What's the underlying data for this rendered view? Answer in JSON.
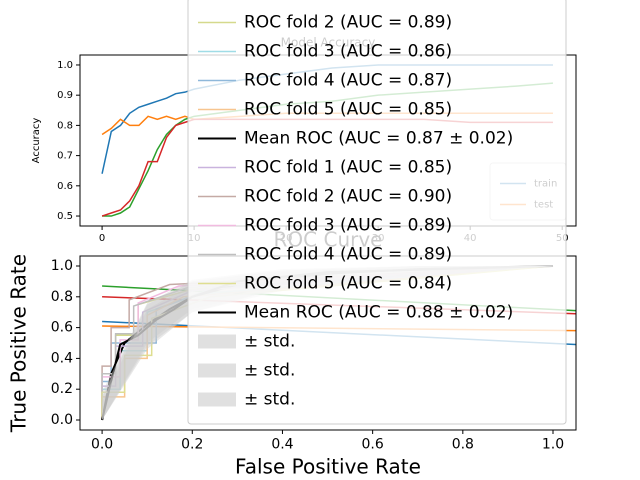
{
  "chart_data": [
    {
      "type": "line",
      "title": "Model Accuracy",
      "ylabel": "Accuracy",
      "x": [
        0,
        1,
        2,
        3,
        4,
        5,
        6,
        7,
        8,
        9,
        10,
        15,
        20,
        25,
        30,
        35,
        40,
        45,
        49
      ],
      "series": [
        {
          "name": "train",
          "color": "#1f77b4",
          "values": [
            0.64,
            0.78,
            0.8,
            0.84,
            0.86,
            0.87,
            0.88,
            0.89,
            0.905,
            0.91,
            0.92,
            0.95,
            0.97,
            0.99,
            1.0,
            1.0,
            1.0,
            1.0,
            1.0
          ]
        },
        {
          "name": "test",
          "color": "#ff7f0e",
          "values": [
            0.77,
            0.79,
            0.82,
            0.8,
            0.8,
            0.83,
            0.82,
            0.83,
            0.82,
            0.83,
            0.82,
            0.83,
            0.84,
            0.84,
            0.84,
            0.84,
            0.84,
            0.84,
            0.84
          ]
        },
        {
          "color": "#2ca02c",
          "values": [
            0.5,
            0.5,
            0.51,
            0.53,
            0.59,
            0.65,
            0.72,
            0.77,
            0.8,
            0.82,
            0.83,
            0.85,
            0.87,
            0.88,
            0.9,
            0.91,
            0.92,
            0.93,
            0.94
          ]
        },
        {
          "color": "#d62728",
          "values": [
            0.5,
            0.51,
            0.52,
            0.55,
            0.6,
            0.68,
            0.68,
            0.76,
            0.8,
            0.81,
            0.82,
            0.82,
            0.82,
            0.82,
            0.82,
            0.82,
            0.81,
            0.81,
            0.81
          ]
        }
      ],
      "xlim": [
        -2.4,
        51.5
      ],
      "ylim": [
        0.467,
        1.033
      ],
      "xticks": [
        0,
        10,
        20,
        30,
        40,
        50
      ],
      "yticks": [
        0.5,
        0.6,
        0.7,
        0.8,
        0.9,
        {
          "value": 1,
          "label": "1.0"
        }
      ],
      "legend": "lower right"
    },
    {
      "type": "line",
      "title": "ROC Curve",
      "xlabel": "False Positive Rate",
      "ylabel": "True Positive Rate",
      "series": [
        {
          "color": "#2ca02c",
          "x": [
            0,
            1.05
          ],
          "values": [
            0.87,
            0.71
          ]
        },
        {
          "color": "#d62728",
          "x": [
            0,
            1.05
          ],
          "values": [
            0.8,
            0.69
          ]
        },
        {
          "color": "#1f77b4",
          "x": [
            0,
            1.05
          ],
          "values": [
            0.64,
            0.49
          ]
        },
        {
          "color": "#ff7f0e",
          "x": [
            0,
            1.05
          ],
          "values": [
            0.61,
            0.58
          ]
        },
        {
          "name": "ROC fold 2 (AUC = 0.89)",
          "color": "#d5d98c",
          "x": [
            0,
            0,
            0.03,
            0.03,
            0.08,
            0.08,
            0.2,
            1.0
          ],
          "values": [
            0,
            0.3,
            0.3,
            0.55,
            0.55,
            0.75,
            0.85,
            1.0
          ]
        },
        {
          "name": "ROC fold 3 (AUC = 0.86)",
          "color": "#9fdce6",
          "x": [
            0,
            0,
            0.04,
            0.04,
            0.1,
            0.1,
            0.22,
            1.0
          ],
          "values": [
            0,
            0.2,
            0.2,
            0.45,
            0.45,
            0.7,
            0.82,
            1.0
          ]
        },
        {
          "name": "ROC fold 4 (AUC = 0.87)",
          "color": "#8fb8da",
          "x": [
            0,
            0,
            0.02,
            0.02,
            0.12,
            0.12,
            0.25,
            1.0
          ],
          "values": [
            0,
            0.25,
            0.25,
            0.5,
            0.5,
            0.72,
            0.86,
            1.0
          ]
        },
        {
          "name": "ROC fold 5 (AUC = 0.85)",
          "color": "#f7c58f",
          "x": [
            0,
            0,
            0.05,
            0.05,
            0.1,
            0.1,
            0.18,
            1.0
          ],
          "values": [
            0,
            0.15,
            0.15,
            0.4,
            0.4,
            0.68,
            0.8,
            1.0
          ]
        },
        {
          "name": "Mean ROC (AUC = 0.87 ± 0.02)",
          "color": "#000000",
          "x": [
            0,
            0.02,
            0.05,
            0.1,
            0.15,
            0.2,
            0.3,
            0.5,
            0.7,
            1.0
          ],
          "values": [
            0,
            0.3,
            0.5,
            0.62,
            0.72,
            0.8,
            0.88,
            0.95,
            0.98,
            1.0
          ]
        },
        {
          "name": "ROC fold 1 (AUC = 0.85)",
          "color": "#c9b3de",
          "x": [
            0,
            0,
            0.03,
            0.03,
            0.09,
            0.09,
            0.2,
            1.0
          ],
          "values": [
            0,
            0.22,
            0.22,
            0.48,
            0.48,
            0.7,
            0.84,
            1.0
          ]
        },
        {
          "name": "ROC fold 2 (AUC = 0.90)",
          "color": "#c5aaa5",
          "x": [
            0,
            0,
            0.02,
            0.02,
            0.06,
            0.06,
            0.15,
            1.0
          ],
          "values": [
            0,
            0.35,
            0.35,
            0.6,
            0.6,
            0.78,
            0.88,
            1.0
          ]
        },
        {
          "name": "ROC fold 3 (AUC = 0.89)",
          "color": "#f1bbe0",
          "x": [
            0,
            0,
            0.04,
            0.04,
            0.08,
            0.08,
            0.17,
            1.0
          ],
          "values": [
            0,
            0.28,
            0.28,
            0.52,
            0.52,
            0.76,
            0.87,
            1.0
          ]
        },
        {
          "name": "ROC fold 4 (AUC = 0.89)",
          "color": "#bfbfbf",
          "x": [
            0,
            0,
            0.03,
            0.03,
            0.07,
            0.07,
            0.19,
            1.0
          ],
          "values": [
            0,
            0.3,
            0.3,
            0.56,
            0.56,
            0.74,
            0.86,
            1.0
          ]
        },
        {
          "name": "ROC fold 5 (AUC = 0.84)",
          "color": "#dede90",
          "x": [
            0,
            0,
            0.05,
            0.05,
            0.11,
            0.11,
            0.24,
            1.0
          ],
          "values": [
            0,
            0.18,
            0.18,
            0.42,
            0.42,
            0.66,
            0.8,
            1.0
          ]
        },
        {
          "name": "Mean ROC (AUC = 0.88 ± 0.02)",
          "color": "#000000",
          "x": [
            0,
            0.02,
            0.04,
            0.08,
            0.12,
            0.16,
            0.2,
            0.3,
            0.5,
            1.0
          ],
          "values": [
            0,
            0.25,
            0.49,
            0.55,
            0.65,
            0.72,
            0.8,
            0.9,
            0.96,
            1.0
          ]
        },
        {
          "name": "± std.",
          "kind": "band",
          "color": "#cccccc",
          "x": [
            0,
            0.1,
            0.2,
            0.4,
            0.7,
            1.0
          ],
          "lower": [
            0,
            0.5,
            0.72,
            0.85,
            0.93,
            1.0
          ],
          "upper": [
            0.15,
            0.75,
            0.9,
            0.97,
            1.0,
            1.0
          ]
        },
        {
          "name": "± std.",
          "kind": "band",
          "color": "#cccccc",
          "x": [
            0,
            0.1,
            0.2,
            0.4,
            0.7,
            1.0
          ],
          "lower": [
            0,
            0.48,
            0.7,
            0.84,
            0.92,
            1.0
          ],
          "upper": [
            0.12,
            0.72,
            0.88,
            0.96,
            1.0,
            1.0
          ]
        },
        {
          "name": "± std.",
          "kind": "band",
          "color": "#cccccc",
          "x": [
            0,
            0.1,
            0.2,
            0.4,
            0.7,
            1.0
          ],
          "lower": [
            0,
            0.46,
            0.7,
            0.86,
            0.94,
            1.0
          ],
          "upper": [
            0.18,
            0.76,
            0.91,
            0.98,
            1.0,
            1.0
          ]
        }
      ],
      "xlim": [
        -0.049,
        1.051
      ],
      "ylim": [
        -0.065,
        1.065
      ],
      "xticks": [
        {
          "value": 0,
          "label": "0.0"
        },
        0.2,
        0.4,
        0.6,
        0.8,
        {
          "value": 1,
          "label": "1.0"
        }
      ],
      "yticks": [
        {
          "value": 0,
          "label": "0.0"
        },
        0.2,
        0.4,
        0.6,
        0.8,
        {
          "value": 1,
          "label": "1.0"
        }
      ],
      "legend": "lower right"
    }
  ]
}
